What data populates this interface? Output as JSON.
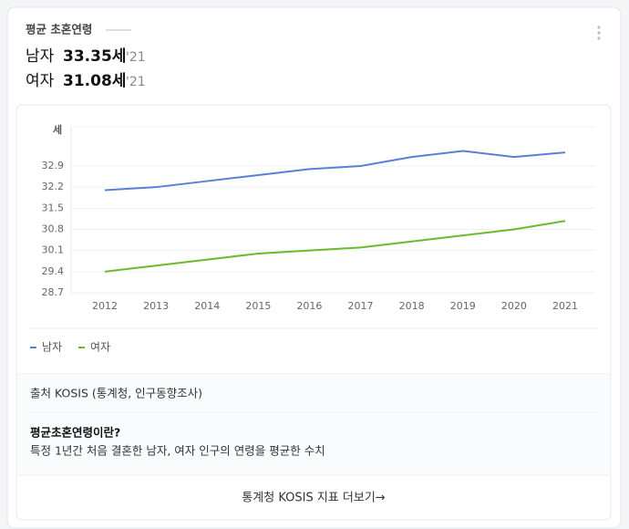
{
  "header": {
    "title": "평균 초혼연령",
    "stats": [
      {
        "label": "남자",
        "value": "33.35세",
        "year": "'21"
      },
      {
        "label": "여자",
        "value": "31.08세",
        "year": "'21"
      }
    ]
  },
  "chart_data": {
    "type": "line",
    "y_unit": "세",
    "categories": [
      "2012",
      "2013",
      "2014",
      "2015",
      "2016",
      "2017",
      "2018",
      "2019",
      "2020",
      "2021"
    ],
    "series": [
      {
        "name": "남자",
        "color": "#5b7fd8",
        "values": [
          32.1,
          32.2,
          32.4,
          32.6,
          32.8,
          32.9,
          33.2,
          33.4,
          33.2,
          33.35
        ]
      },
      {
        "name": "여자",
        "color": "#6bb92d",
        "values": [
          29.4,
          29.6,
          29.8,
          30.0,
          30.1,
          30.2,
          30.4,
          30.6,
          30.8,
          31.08
        ]
      }
    ],
    "ylim": [
      28.7,
      34.2
    ],
    "yticks": [
      28.7,
      29.4,
      30.1,
      30.8,
      31.5,
      32.2,
      32.9
    ],
    "grid": true
  },
  "source": "출처 KOSIS (통계청, 인구동향조사)",
  "definition": {
    "title": "평균초혼연령이란?",
    "text": "특정 1년간 처음 결혼한 남자, 여자 인구의 연령을 평균한 수치"
  },
  "more_link": "통계청 KOSIS 지표 더보기→"
}
